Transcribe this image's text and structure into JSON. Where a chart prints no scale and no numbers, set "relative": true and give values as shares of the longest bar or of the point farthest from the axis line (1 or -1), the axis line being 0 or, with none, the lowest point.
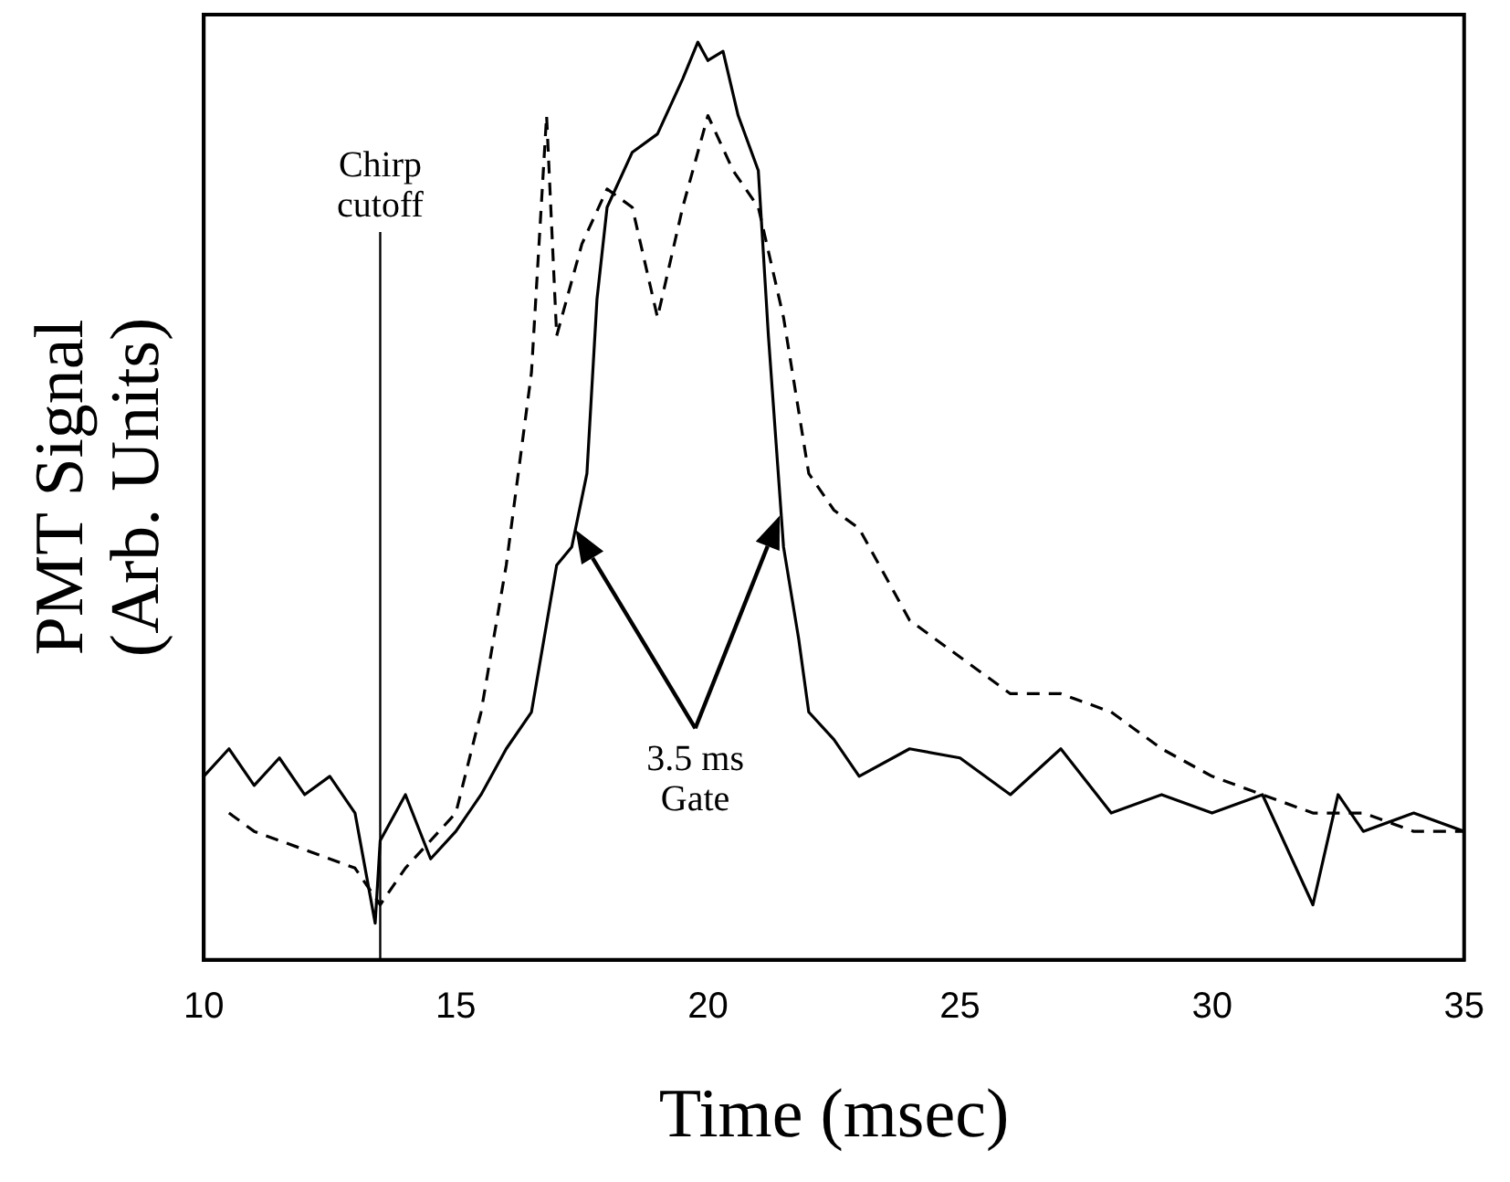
{
  "chart_data": {
    "type": "line",
    "relative": true,
    "xlabel": "Time (msec)",
    "ylabel": "PMT Signal\n(Arb. Units)",
    "xlim": [
      10,
      35
    ],
    "xticks": [
      10,
      15,
      20,
      25,
      30,
      35
    ],
    "tick_labels": "x",
    "grid": false,
    "legend": false,
    "marker": "none",
    "ref_lines": [
      {
        "axis": "x",
        "value": 13.5,
        "label": "Chirp\ncutoff",
        "color": "#000000"
      }
    ],
    "annotations": [
      "3.5 ms\nGate"
    ],
    "series": [
      {
        "color": "#000000",
        "line_style": "solid",
        "x": [
          10,
          10.5,
          11,
          11.5,
          12,
          12.5,
          13,
          13.4,
          13.5,
          14,
          14.5,
          15,
          15.5,
          16,
          16.5,
          17,
          17.3,
          17.6,
          17.8,
          18,
          18.5,
          19,
          19.5,
          19.8,
          20,
          20.3,
          20.6,
          21,
          21.2,
          21.5,
          21.8,
          22,
          22.5,
          23,
          24,
          25,
          26,
          27,
          28,
          29,
          30,
          31,
          32,
          32.5,
          33,
          34,
          35
        ],
        "values": [
          0.2,
          0.23,
          0.19,
          0.22,
          0.18,
          0.2,
          0.16,
          0.04,
          0.13,
          0.18,
          0.11,
          0.14,
          0.18,
          0.23,
          0.27,
          0.43,
          0.45,
          0.53,
          0.72,
          0.82,
          0.88,
          0.9,
          0.96,
          1,
          0.98,
          0.99,
          0.92,
          0.86,
          0.68,
          0.45,
          0.35,
          0.27,
          0.24,
          0.2,
          0.23,
          0.22,
          0.18,
          0.23,
          0.16,
          0.18,
          0.16,
          0.18,
          0.06,
          0.18,
          0.14,
          0.16,
          0.14
        ]
      },
      {
        "color": "#000000",
        "line_style": "dashed",
        "x": [
          10.5,
          11,
          12,
          13,
          13.5,
          14,
          15,
          15.5,
          16,
          16.5,
          16.8,
          17,
          17.5,
          18,
          18.5,
          19,
          19.5,
          20,
          20.5,
          21,
          21.5,
          22,
          22.5,
          23,
          24,
          25,
          26,
          27,
          28,
          29,
          30,
          31,
          32,
          33,
          34,
          35
        ],
        "values": [
          0.16,
          0.14,
          0.12,
          0.1,
          0.06,
          0.1,
          0.16,
          0.27,
          0.43,
          0.64,
          0.92,
          0.68,
          0.78,
          0.84,
          0.82,
          0.7,
          0.82,
          0.92,
          0.86,
          0.82,
          0.7,
          0.53,
          0.49,
          0.47,
          0.37,
          0.33,
          0.29,
          0.29,
          0.27,
          0.23,
          0.2,
          0.18,
          0.16,
          0.16,
          0.14,
          0.14
        ]
      }
    ]
  }
}
